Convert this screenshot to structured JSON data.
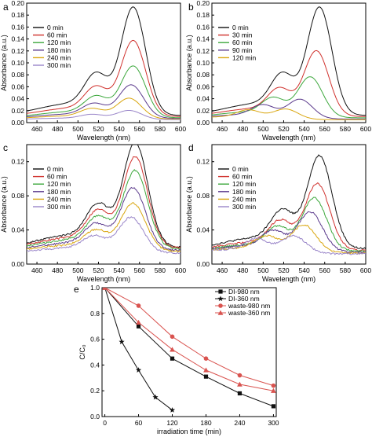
{
  "colors": {
    "axis": "#000000",
    "black": "#111111",
    "red": "#d0312d",
    "green": "#3da83d",
    "purple": "#5b3a8c",
    "yellow": "#d9a60f",
    "violet": "#9a86c9",
    "lightred": "#d9534f"
  },
  "chart_data": [
    {
      "panel": "a",
      "type": "line",
      "xlabel": "Wavelength (nm)",
      "ylabel": "Absorbance (a.u.)",
      "xlim": [
        450,
        600
      ],
      "ylim": [
        0,
        0.2
      ],
      "xticks": [
        460,
        480,
        500,
        520,
        540,
        560,
        580,
        600
      ],
      "xtick_labels": [
        "460",
        "480",
        "500",
        "520",
        "540",
        "560",
        "580",
        "600"
      ],
      "yticks": [
        0.0,
        0.02,
        0.04,
        0.06,
        0.08,
        0.1,
        0.12,
        0.14,
        0.16,
        0.18,
        0.2
      ],
      "ytick_labels": [
        "0.00",
        "0.02",
        "0.04",
        "0.06",
        "0.08",
        "0.10",
        "0.12",
        "0.14",
        "0.16",
        "0.18",
        "0.20"
      ],
      "legend_position": "top-left",
      "series": [
        {
          "name": "0 min",
          "color": "black",
          "peak_x": 554,
          "peak": 0.19,
          "shoulder": 0.068,
          "base": 0.012
        },
        {
          "name": "60 min",
          "color": "red",
          "peak_x": 554,
          "peak": 0.135,
          "shoulder": 0.05,
          "base": 0.01
        },
        {
          "name": "120 min",
          "color": "green",
          "peak_x": 554,
          "peak": 0.093,
          "shoulder": 0.037,
          "base": 0.008
        },
        {
          "name": "180 min",
          "color": "purple",
          "peak_x": 552,
          "peak": 0.062,
          "shoulder": 0.027,
          "base": 0.007
        },
        {
          "name": "240 min",
          "color": "yellow",
          "peak_x": 550,
          "peak": 0.04,
          "shoulder": 0.02,
          "base": 0.006
        },
        {
          "name": "300 min",
          "color": "violet",
          "peak_x": 550,
          "peak": 0.02,
          "shoulder": 0.012,
          "base": 0.005
        }
      ]
    },
    {
      "panel": "b",
      "type": "line",
      "xlabel": "Wavelength (nm)",
      "ylabel": "Absorbance (a.u.)",
      "xlim": [
        450,
        600
      ],
      "ylim": [
        0,
        0.2
      ],
      "xticks": [
        460,
        480,
        500,
        520,
        540,
        560,
        580,
        600
      ],
      "xtick_labels": [
        "460",
        "480",
        "500",
        "520",
        "540",
        "560",
        "580",
        "600"
      ],
      "yticks": [
        0.0,
        0.02,
        0.04,
        0.06,
        0.08,
        0.1,
        0.12,
        0.14,
        0.16,
        0.18,
        0.2
      ],
      "ytick_labels": [
        "0.00",
        "0.02",
        "0.04",
        "0.06",
        "0.08",
        "0.10",
        "0.12",
        "0.14",
        "0.16",
        "0.18",
        "0.20"
      ],
      "legend_position": "top-left",
      "series": [
        {
          "name": "0 min",
          "color": "black",
          "peak_x": 555,
          "peak": 0.19,
          "shoulder": 0.068,
          "base": 0.012
        },
        {
          "name": "30 min",
          "color": "red",
          "peak_x": 552,
          "peak": 0.118,
          "shoulder": 0.048,
          "base": 0.01
        },
        {
          "name": "60 min",
          "color": "green",
          "peak_x": 546,
          "peak": 0.075,
          "shoulder": 0.035,
          "base": 0.008
        },
        {
          "name": "90 min",
          "color": "purple",
          "peak_x": 536,
          "peak": 0.038,
          "shoulder": 0.025,
          "base": 0.006
        },
        {
          "name": "120 min",
          "color": "yellow",
          "peak_x": 522,
          "peak": 0.022,
          "shoulder": 0.018,
          "base": 0.005
        }
      ]
    },
    {
      "panel": "c",
      "type": "line",
      "xlabel": "Wavelength (nm)",
      "ylabel": "Absorbance (a.u.)",
      "xlim": [
        450,
        600
      ],
      "ylim": [
        0,
        0.14
      ],
      "xticks": [
        460,
        480,
        500,
        520,
        540,
        560,
        580,
        600
      ],
      "xtick_labels": [
        "460",
        "480",
        "500",
        "520",
        "540",
        "560",
        "580",
        "600"
      ],
      "yticks": [
        0.0,
        0.04,
        0.08,
        0.12
      ],
      "ytick_labels": [
        "0.00",
        "0.04",
        "0.08",
        "0.12"
      ],
      "legend_position": "top-left",
      "series": [
        {
          "name": "0 min",
          "color": "black",
          "peak_x": 556,
          "peak": 0.14,
          "shoulder": 0.06,
          "base": 0.02
        },
        {
          "name": "60 min",
          "color": "red",
          "peak_x": 556,
          "peak": 0.124,
          "shoulder": 0.054,
          "base": 0.019
        },
        {
          "name": "120 min",
          "color": "green",
          "peak_x": 556,
          "peak": 0.108,
          "shoulder": 0.048,
          "base": 0.018
        },
        {
          "name": "180 min",
          "color": "purple",
          "peak_x": 554,
          "peak": 0.088,
          "shoulder": 0.041,
          "base": 0.016
        },
        {
          "name": "240 min",
          "color": "yellow",
          "peak_x": 554,
          "peak": 0.07,
          "shoulder": 0.035,
          "base": 0.015
        },
        {
          "name": "300 min",
          "color": "violet",
          "peak_x": 552,
          "peak": 0.054,
          "shoulder": 0.029,
          "base": 0.013
        }
      ]
    },
    {
      "panel": "d",
      "type": "line",
      "xlabel": "Wavelength (nm)",
      "ylabel": "Absorbance (a.u.)",
      "xlim": [
        450,
        600
      ],
      "ylim": [
        0,
        0.14
      ],
      "xticks": [
        460,
        480,
        500,
        520,
        540,
        560,
        580,
        600
      ],
      "xtick_labels": [
        "460",
        "480",
        "500",
        "520",
        "540",
        "560",
        "580",
        "600"
      ],
      "yticks": [
        0.0,
        0.04,
        0.08,
        0.12
      ],
      "ytick_labels": [
        "0.00",
        "0.04",
        "0.08",
        "0.12"
      ],
      "legend_position": "top-left",
      "series": [
        {
          "name": "0 min",
          "color": "black",
          "peak_x": 555,
          "peak": 0.125,
          "shoulder": 0.054,
          "base": 0.018
        },
        {
          "name": "60 min",
          "color": "red",
          "peak_x": 553,
          "peak": 0.093,
          "shoulder": 0.044,
          "base": 0.016
        },
        {
          "name": "120 min",
          "color": "green",
          "peak_x": 550,
          "peak": 0.076,
          "shoulder": 0.038,
          "base": 0.015
        },
        {
          "name": "180 min",
          "color": "purple",
          "peak_x": 546,
          "peak": 0.06,
          "shoulder": 0.034,
          "base": 0.014
        },
        {
          "name": "240 min",
          "color": "yellow",
          "peak_x": 540,
          "peak": 0.045,
          "shoulder": 0.029,
          "base": 0.013
        },
        {
          "name": "300 min",
          "color": "violet",
          "peak_x": 530,
          "peak": 0.032,
          "shoulder": 0.026,
          "base": 0.012
        }
      ]
    },
    {
      "panel": "e",
      "type": "line",
      "xlabel": "irradiation time (min)",
      "ylabel": "C/C₀",
      "xlim": [
        -5,
        305
      ],
      "ylim": [
        0,
        1.0
      ],
      "xticks": [
        0,
        60,
        120,
        180,
        240,
        300
      ],
      "xtick_labels": [
        "0",
        "60",
        "120",
        "180",
        "240",
        "300"
      ],
      "yticks": [
        0.0,
        0.2,
        0.4,
        0.6,
        0.8,
        1.0
      ],
      "ytick_labels": [
        "0.0",
        "0.2",
        "0.4",
        "0.6",
        "0.8",
        "1.0"
      ],
      "legend_position": "top-right",
      "series": [
        {
          "name": "DI-980 nm",
          "color": "black",
          "marker": "square",
          "x": [
            0,
            60,
            120,
            180,
            240,
            300
          ],
          "y": [
            1.0,
            0.7,
            0.45,
            0.31,
            0.18,
            0.08
          ]
        },
        {
          "name": "DI-360 nm",
          "color": "black",
          "marker": "star",
          "x": [
            0,
            30,
            60,
            90,
            120
          ],
          "y": [
            1.0,
            0.58,
            0.36,
            0.15,
            0.05
          ]
        },
        {
          "name": "waste-980 nm",
          "color": "lightred",
          "marker": "circle",
          "x": [
            0,
            60,
            120,
            180,
            240,
            300
          ],
          "y": [
            1.0,
            0.86,
            0.62,
            0.45,
            0.32,
            0.24
          ]
        },
        {
          "name": "waste-360 nm",
          "color": "lightred",
          "marker": "triangle",
          "x": [
            0,
            60,
            120,
            180,
            240,
            300
          ],
          "y": [
            1.0,
            0.73,
            0.52,
            0.36,
            0.25,
            0.2
          ]
        }
      ]
    }
  ]
}
